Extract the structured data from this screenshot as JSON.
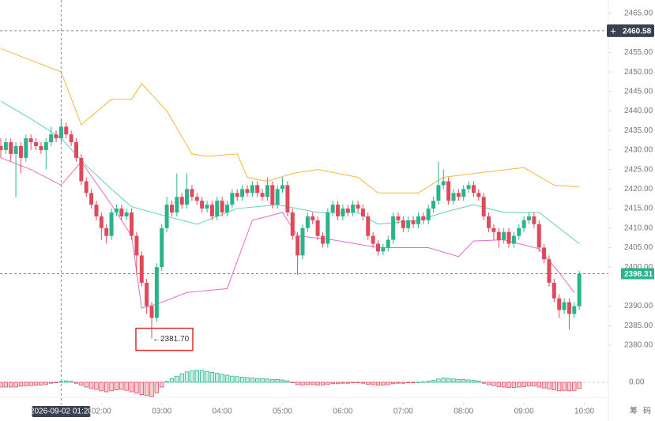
{
  "chart_data": {
    "type": "candlestick",
    "x": [
      20,
      25,
      30,
      35,
      40,
      45,
      50,
      55,
      60,
      65,
      70,
      75,
      80,
      85,
      90,
      95,
      100,
      105,
      110,
      115,
      120,
      125,
      130,
      135,
      140,
      145,
      150,
      155,
      160,
      165,
      170,
      175,
      180,
      185,
      190,
      195,
      200,
      205,
      210,
      215,
      220,
      225,
      230,
      235,
      240,
      245,
      250,
      255,
      260,
      265,
      270,
      275,
      280,
      285,
      290,
      295,
      300,
      305,
      310,
      315,
      320,
      325,
      330,
      335,
      340,
      345,
      350,
      355,
      360,
      365,
      370,
      375,
      380,
      385,
      390,
      395,
      400,
      405,
      410,
      415,
      420,
      425,
      430,
      435,
      440,
      445,
      450,
      455,
      460,
      465,
      470,
      475,
      480,
      485,
      490,
      495,
      500,
      505,
      510,
      515,
      520,
      525,
      530,
      535,
      540,
      545,
      550,
      555,
      560,
      565,
      570,
      575,
      580,
      585,
      590,
      595
    ],
    "open": [
      2431,
      2430,
      2432,
      2429,
      2431,
      2428,
      2433,
      2432,
      2431,
      2430,
      2432,
      2434,
      2433,
      2436,
      2434,
      2432,
      2428,
      2422,
      2419,
      2416,
      2413,
      2410,
      2408,
      2414,
      2415,
      2413,
      2414,
      2408,
      2403,
      2396,
      2390,
      2387,
      2400,
      2410,
      2416,
      2414,
      2418,
      2416,
      2420,
      2418,
      2417,
      2415,
      2416,
      2413,
      2417,
      2414,
      2416,
      2419,
      2418,
      2420,
      2419,
      2421,
      2419,
      2418,
      2421,
      2416,
      2420,
      2421,
      2414,
      2408,
      2403,
      2410,
      2413,
      2412,
      2408,
      2406,
      2414,
      2416,
      2413,
      2415,
      2414,
      2416,
      2415,
      2413,
      2408,
      2406,
      2404,
      2405,
      2407,
      2413,
      2412,
      2410,
      2412,
      2411,
      2413,
      2412,
      2415,
      2417,
      2421,
      2422,
      2417,
      2419,
      2418,
      2420,
      2421,
      2419,
      2418,
      2413,
      2410,
      2409,
      2407,
      2409,
      2406,
      2408,
      2410,
      2412,
      2413,
      2411,
      2405,
      2402,
      2396,
      2392,
      2389,
      2391,
      2388,
      2390
    ],
    "high": [
      2433,
      2433,
      2433,
      2432,
      2432,
      2434,
      2434,
      2433,
      2432,
      2433,
      2436,
      2435,
      2438,
      2437,
      2435,
      2433,
      2429,
      2423,
      2420,
      2417,
      2414,
      2411,
      2415,
      2416,
      2416,
      2415,
      2415,
      2409,
      2404,
      2397,
      2391,
      2401,
      2411,
      2418,
      2417,
      2424,
      2419,
      2424,
      2421,
      2419,
      2418,
      2417,
      2417,
      2418,
      2418,
      2417,
      2420,
      2420,
      2421,
      2421,
      2422,
      2422,
      2420,
      2423,
      2422,
      2421,
      2423,
      2422,
      2415,
      2409,
      2411,
      2414,
      2414,
      2413,
      2409,
      2415,
      2417,
      2417,
      2416,
      2416,
      2417,
      2417,
      2416,
      2414,
      2409,
      2407,
      2406,
      2408,
      2414,
      2414,
      2413,
      2413,
      2413,
      2414,
      2414,
      2416,
      2418,
      2427,
      2425,
      2423,
      2420,
      2420,
      2421,
      2422,
      2422,
      2420,
      2419,
      2414,
      2411,
      2410,
      2410,
      2410,
      2409,
      2411,
      2413,
      2414,
      2414,
      2412,
      2406,
      2403,
      2397,
      2393,
      2392,
      2392,
      2391,
      2399
    ],
    "low": [
      2428,
      2429,
      2427,
      2418,
      2424,
      2427,
      2430,
      2430,
      2429,
      2425,
      2431,
      2432,
      2432,
      2433,
      2431,
      2427,
      2421,
      2418,
      2415,
      2412,
      2407,
      2406,
      2407,
      2413,
      2412,
      2412,
      2407,
      2398,
      2395,
      2388,
      2381.7,
      2386,
      2399,
      2409,
      2413,
      2413,
      2415,
      2415,
      2417,
      2416,
      2414,
      2414,
      2412,
      2412,
      2413,
      2413,
      2415,
      2417,
      2417,
      2418,
      2418,
      2418,
      2417,
      2417,
      2415,
      2415,
      2419,
      2413,
      2407,
      2398,
      2402,
      2409,
      2411,
      2407,
      2405,
      2405,
      2413,
      2412,
      2412,
      2413,
      2413,
      2414,
      2412,
      2407,
      2405,
      2403,
      2403,
      2404,
      2406,
      2411,
      2409,
      2409,
      2410,
      2410,
      2411,
      2411,
      2414,
      2416,
      2420,
      2416,
      2416,
      2417,
      2417,
      2419,
      2418,
      2417,
      2412,
      2409,
      2407,
      2405,
      2406,
      2405,
      2405,
      2407,
      2409,
      2411,
      2410,
      2404,
      2401,
      2395,
      2391,
      2387,
      2388,
      2384,
      2387,
      2389
    ],
    "close": [
      2430,
      2432,
      2429,
      2431,
      2428,
      2433,
      2432,
      2431,
      2430,
      2432,
      2434,
      2433,
      2436,
      2434,
      2432,
      2428,
      2422,
      2419,
      2416,
      2413,
      2410,
      2408,
      2414,
      2415,
      2413,
      2414,
      2408,
      2403,
      2396,
      2390,
      2387,
      2400,
      2410,
      2416,
      2414,
      2418,
      2416,
      2420,
      2418,
      2417,
      2415,
      2416,
      2413,
      2417,
      2414,
      2416,
      2419,
      2418,
      2420,
      2419,
      2421,
      2419,
      2418,
      2421,
      2416,
      2420,
      2421,
      2414,
      2408,
      2403,
      2410,
      2413,
      2412,
      2408,
      2406,
      2414,
      2416,
      2413,
      2415,
      2414,
      2416,
      2415,
      2413,
      2408,
      2406,
      2404,
      2405,
      2407,
      2413,
      2412,
      2410,
      2412,
      2411,
      2413,
      2412,
      2415,
      2417,
      2421,
      2422,
      2417,
      2419,
      2418,
      2420,
      2421,
      2419,
      2418,
      2413,
      2410,
      2409,
      2407,
      2409,
      2406,
      2408,
      2410,
      2412,
      2413,
      2411,
      2405,
      2402,
      2396,
      2392,
      2389,
      2391,
      2388,
      2390,
      2398.31
    ],
    "up_color": "#2bb38a",
    "down_color": "#e0495a",
    "bands": [
      {
        "color": "#f5b73a",
        "x": [
          20,
          50,
          80,
          100,
          130,
          150,
          160,
          185,
          210,
          225,
          255,
          265,
          285,
          310,
          335,
          375,
          395,
          435,
          460,
          490,
          540,
          570,
          595
        ],
        "values": [
          2456,
          2453,
          2450,
          2436.5,
          2443,
          2443,
          2447,
          2440,
          2429,
          2428.4,
          2429,
          2423,
          2422,
          2424,
          2425,
          2423,
          2419,
          2419,
          2423,
          2424,
          2425.5,
          2421,
          2420.5
        ]
      },
      {
        "color": "#5fd0b8",
        "x": [
          20,
          50,
          80,
          105,
          130,
          150,
          185,
          215,
          255,
          295,
          335,
          375,
          395,
          435,
          460,
          490,
          520,
          555,
          575,
          595
        ],
        "values": [
          2442.5,
          2438,
          2433,
          2426,
          2420,
          2415.5,
          2413,
          2411,
          2415,
          2416,
          2414,
          2414,
          2411,
          2412,
          2414,
          2416,
          2414,
          2414,
          2410,
          2406
        ]
      },
      {
        "color": "#e36bcb",
        "x": [
          20,
          50,
          80,
          100,
          130,
          150,
          160,
          175,
          205,
          245,
          270,
          300,
          315,
          350,
          395,
          445,
          475,
          490,
          520,
          555,
          575,
          590
        ],
        "values": [
          2428,
          2425,
          2421,
          2427,
          2416,
          2408,
          2389.5,
          2390.5,
          2393.5,
          2394.5,
          2412,
          2414,
          2408,
          2407,
          2405,
          2405,
          2402.7,
          2406.7,
          2407,
          2404.7,
          2398.6,
          2393.5
        ]
      }
    ],
    "xlim": [
      0,
      605
    ],
    "xticks": [
      {
        "value": 120,
        "label": "02:00"
      },
      {
        "value": 180,
        "label": "03:00"
      },
      {
        "value": 240,
        "label": "04:00"
      },
      {
        "value": 300,
        "label": "05:00"
      },
      {
        "value": 360,
        "label": "06:00"
      },
      {
        "value": 420,
        "label": "07:00"
      },
      {
        "value": 480,
        "label": "08:00"
      },
      {
        "value": 540,
        "label": "09:00"
      },
      {
        "value": 600,
        "label": "10:00"
      }
    ],
    "ylim": [
      2380,
      2465
    ],
    "yticks": [
      {
        "value": 2380,
        "label": "2380.00"
      },
      {
        "value": 2385,
        "label": "2385.00"
      },
      {
        "value": 2390,
        "label": "2390.00"
      },
      {
        "value": 2400,
        "label": "2400.00"
      },
      {
        "value": 2405,
        "label": "2405.00"
      },
      {
        "value": 2410,
        "label": "2410.00"
      },
      {
        "value": 2415,
        "label": "2415.00"
      },
      {
        "value": 2420,
        "label": "2420.00"
      },
      {
        "value": 2425,
        "label": "2425.00"
      },
      {
        "value": 2430,
        "label": "2430.00"
      },
      {
        "value": 2435,
        "label": "2435.00"
      },
      {
        "value": 2440,
        "label": "2440.00"
      },
      {
        "value": 2445,
        "label": "2445.00"
      },
      {
        "value": 2450,
        "label": "2450.00"
      },
      {
        "value": 2455,
        "label": "2455.00"
      },
      {
        "value": 2460,
        "label": "2460.00"
      },
      {
        "value": 2465,
        "label": "2465.00"
      }
    ],
    "last_price": {
      "value": 2398.31,
      "label": "2398.31"
    },
    "crosshair_price": {
      "value": 2460.58,
      "label": "2460.58"
    },
    "crosshair_time": {
      "value": 80,
      "label": "2026-09-02 01:20"
    },
    "low_annotation": {
      "x": 170,
      "value": 2381.7,
      "label": "←2381.70"
    },
    "macd": {
      "ylim": [
        -4,
        4
      ],
      "yticks": [
        {
          "value": 0,
          "label": "0.00"
        }
      ],
      "values": [
        -1,
        -1,
        -1,
        -1,
        -0.8,
        -0.7,
        -0.7,
        -0.6,
        -0.6,
        -0.4,
        -0.2,
        -0.1,
        0.2,
        0.3,
        0.2,
        -0.2,
        -0.6,
        -1,
        -1.3,
        -1.5,
        -1.8,
        -2,
        -1.8,
        -1.6,
        -1.5,
        -1.7,
        -2,
        -2.3,
        -2.6,
        -2.8,
        -3,
        -2.2,
        -1,
        0.2,
        0.8,
        1.3,
        1.8,
        2.2,
        2.4,
        2.5,
        2.5,
        2.3,
        2.1,
        1.9,
        1.7,
        1.5,
        1.3,
        1.2,
        1.1,
        1,
        0.9,
        0.8,
        0.8,
        0.7,
        0.6,
        0.6,
        0.5,
        0.3,
        -0.1,
        -0.5,
        -0.6,
        -0.5,
        -0.5,
        -0.6,
        -0.6,
        -0.4,
        -0.3,
        -0.3,
        -0.2,
        -0.2,
        -0.1,
        -0.1,
        -0.2,
        -0.4,
        -0.5,
        -0.6,
        -0.6,
        -0.5,
        -0.3,
        -0.2,
        -0.2,
        -0.1,
        -0.1,
        0,
        0.1,
        0.2,
        0.4,
        0.7,
        0.9,
        0.8,
        0.7,
        0.6,
        0.6,
        0.5,
        0.4,
        0.3,
        -0.2,
        -0.5,
        -0.7,
        -0.9,
        -1,
        -1.1,
        -1.1,
        -1,
        -0.9,
        -0.8,
        -0.8,
        -1,
        -1.2,
        -1.4,
        -1.6,
        -1.8,
        -1.7,
        -1.8,
        -1.7,
        -1.3
      ]
    },
    "side_tabs": [
      "筹",
      "码"
    ]
  }
}
